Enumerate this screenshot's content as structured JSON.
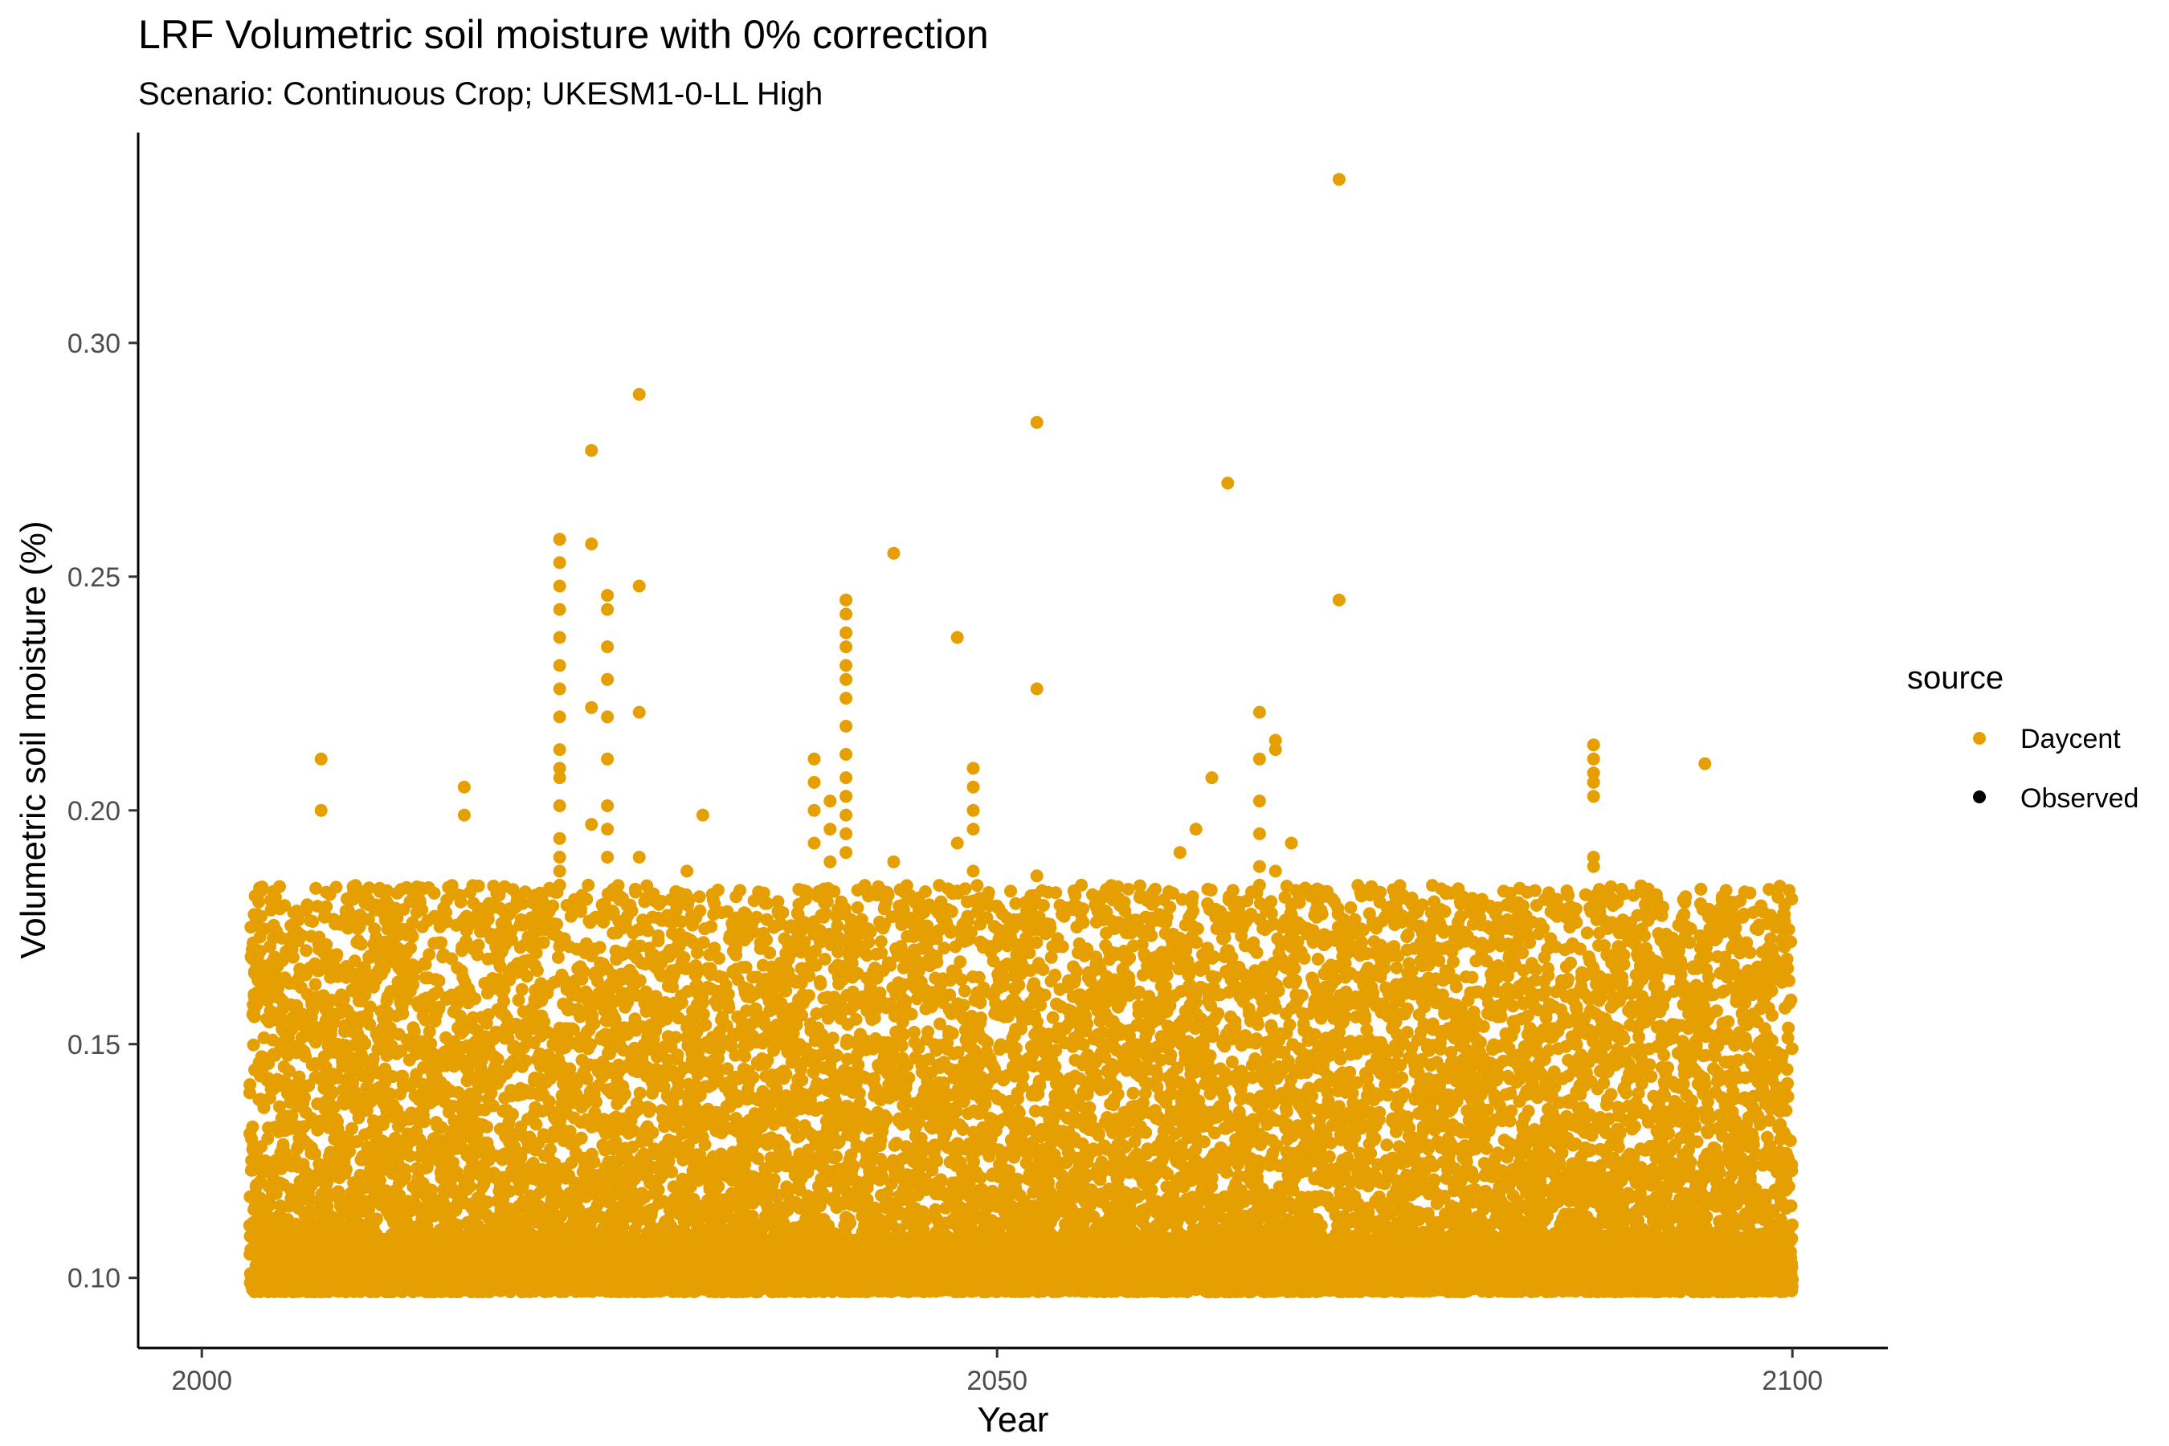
{
  "chart_data": {
    "type": "scatter",
    "title": "LRF Volumetric soil moisture with 0% correction",
    "subtitle": "Scenario: Continuous Crop; UKESM1-0-LL High",
    "xlabel": "Year",
    "ylabel": "Volumetric soil moisture (%)",
    "xlim": [
      1996,
      2106
    ],
    "ylim": [
      0.085,
      0.345
    ],
    "xticks": [
      2000,
      2050,
      2100
    ],
    "xtick_labels": [
      "2000",
      "2050",
      "2100"
    ],
    "yticks": [
      0.1,
      0.15,
      0.2,
      0.25,
      0.3
    ],
    "ytick_labels": [
      "0.10",
      "0.15",
      "0.20",
      "0.25",
      "0.30"
    ],
    "grid": false,
    "legend": {
      "title": "source",
      "position": "right",
      "entries": [
        {
          "label": "Daycent",
          "color": "#E69F00"
        },
        {
          "label": "Observed",
          "color": "#000000"
        }
      ]
    },
    "series": [
      {
        "name": "Daycent",
        "color": "#E69F00",
        "note_bulk": "dense daily points spanning roughly 2003 to 2100 with values between about 0.097 and 0.184",
        "bulk_x_range": [
          2003,
          2100
        ],
        "bulk_y_range": [
          0.097,
          0.184
        ],
        "x": [
          2007,
          2007,
          2016,
          2016,
          2022,
          2022,
          2022,
          2022,
          2022,
          2022,
          2022,
          2022,
          2022,
          2022,
          2022,
          2022,
          2022,
          2022,
          2022,
          2022,
          2024,
          2024,
          2024,
          2024,
          2025,
          2025,
          2025,
          2025,
          2025,
          2025,
          2025,
          2025,
          2025,
          2027,
          2027,
          2027,
          2027,
          2030,
          2031,
          2038,
          2038,
          2038,
          2038,
          2039,
          2039,
          2039,
          2040,
          2040,
          2040,
          2040,
          2040,
          2040,
          2040,
          2040,
          2040,
          2040,
          2040,
          2040,
          2040,
          2040,
          2043,
          2043,
          2047,
          2047,
          2048,
          2048,
          2048,
          2048,
          2048,
          2052,
          2052,
          2052,
          2061,
          2062,
          2063,
          2064,
          2066,
          2066,
          2066,
          2066,
          2066,
          2066,
          2067,
          2067,
          2067,
          2068,
          2071,
          2071,
          2087,
          2087,
          2087,
          2087,
          2087,
          2087,
          2087,
          2094
        ],
        "y": [
          0.211,
          0.2,
          0.205,
          0.199,
          0.258,
          0.253,
          0.248,
          0.243,
          0.237,
          0.231,
          0.226,
          0.22,
          0.213,
          0.209,
          0.207,
          0.201,
          0.194,
          0.187,
          0.184,
          0.19,
          0.277,
          0.257,
          0.222,
          0.197,
          0.246,
          0.243,
          0.235,
          0.228,
          0.22,
          0.211,
          0.201,
          0.196,
          0.19,
          0.289,
          0.248,
          0.221,
          0.19,
          0.187,
          0.199,
          0.211,
          0.206,
          0.2,
          0.193,
          0.202,
          0.196,
          0.189,
          0.245,
          0.242,
          0.238,
          0.235,
          0.231,
          0.228,
          0.224,
          0.218,
          0.212,
          0.207,
          0.203,
          0.199,
          0.195,
          0.191,
          0.255,
          0.189,
          0.237,
          0.193,
          0.209,
          0.205,
          0.2,
          0.196,
          0.187,
          0.283,
          0.226,
          0.186,
          0.191,
          0.196,
          0.207,
          0.27,
          0.221,
          0.211,
          0.202,
          0.195,
          0.188,
          0.184,
          0.215,
          0.213,
          0.187,
          0.193,
          0.335,
          0.245,
          0.214,
          0.211,
          0.208,
          0.206,
          0.203,
          0.19,
          0.188,
          0.21
        ]
      },
      {
        "name": "Observed",
        "color": "#000000",
        "x": [],
        "y": []
      }
    ]
  }
}
